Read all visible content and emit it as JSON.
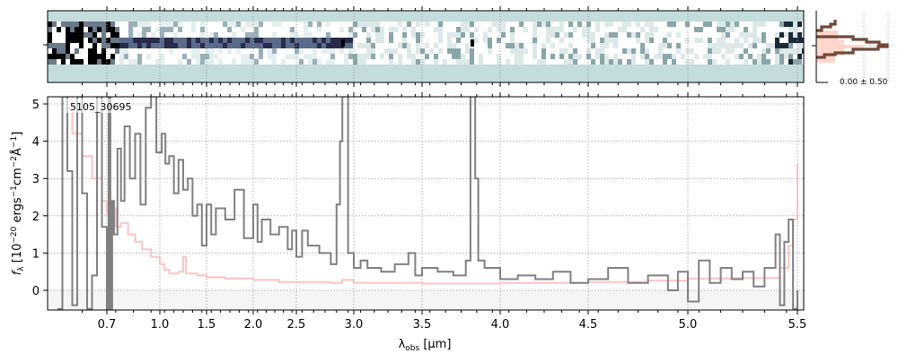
{
  "chart_data": {
    "type": "line",
    "object_id": "5105_30695",
    "xlabel": "λobs [μm]",
    "xlabel_main": "λ",
    "xlabel_sub": "obs",
    "xlabel_unit": " [μm]",
    "ylabel": "fλ [10^-20 ergs^-1 cm^-2 Å^-1]",
    "xlim": [
      0.6,
      5.5
    ],
    "ylim": [
      -0.53,
      5.2
    ],
    "x_ticks": [
      0.7,
      1.0,
      1.5,
      2.0,
      2.5,
      3.0,
      3.5,
      4.0,
      4.5,
      5.0,
      5.5
    ],
    "x_tick_labels": [
      "0.7",
      "1.0",
      "1.5",
      "2.0",
      "2.5",
      "3.0",
      "3.5",
      "4.0",
      "4.5",
      "5.0",
      "5.5"
    ],
    "y_ticks": [
      0,
      1,
      2,
      3,
      4,
      5
    ],
    "y_tick_labels": [
      "0",
      "1",
      "2",
      "3",
      "4",
      "5"
    ],
    "grid": true,
    "colors": {
      "data": "#808080",
      "model": "#ffb8b8",
      "image_bg": "#c4dcdc",
      "hist_edge": "#7a3a2a",
      "hist_fill": "#ffd6cc"
    },
    "series": [
      {
        "name": "data",
        "x": [
          0.6,
          0.61,
          0.62,
          0.63,
          0.64,
          0.65,
          0.66,
          0.67,
          0.68,
          0.69,
          0.7,
          0.71,
          0.72,
          0.73,
          0.74,
          0.76,
          0.78,
          0.8,
          0.83,
          0.86,
          0.89,
          0.92,
          0.95,
          0.98,
          1.02,
          1.06,
          1.1,
          1.15,
          1.2,
          1.25,
          1.3,
          1.35,
          1.4,
          1.45,
          1.5,
          1.55,
          1.6,
          1.7,
          1.8,
          1.9,
          2.0,
          2.05,
          2.1,
          2.2,
          2.3,
          2.4,
          2.45,
          2.5,
          2.55,
          2.6,
          2.7,
          2.8,
          2.85,
          2.88,
          2.9,
          2.93,
          2.95,
          3.0,
          3.05,
          3.1,
          3.2,
          3.3,
          3.4,
          3.45,
          3.5,
          3.6,
          3.7,
          3.78,
          3.81,
          3.84,
          3.86,
          3.9,
          4.0,
          4.1,
          4.2,
          4.3,
          4.4,
          4.5,
          4.6,
          4.7,
          4.8,
          4.9,
          4.95,
          5.0,
          5.05,
          5.1,
          5.15,
          5.2,
          5.25,
          5.3,
          5.35,
          5.4,
          5.42,
          5.44,
          5.46,
          5.48,
          5.5
        ],
        "y": [
          -0.5,
          5.2,
          3.2,
          -0.4,
          5.2,
          2.6,
          -0.5,
          0.4,
          5.2,
          1.7,
          -0.5,
          5.2,
          -0.5,
          2.4,
          1.5,
          3.8,
          2.4,
          4.4,
          3.0,
          4.2,
          2.3,
          4.9,
          5.2,
          3.7,
          4.2,
          3.4,
          3.6,
          2.6,
          3.5,
          2.7,
          3.0,
          2.0,
          2.3,
          1.2,
          2.3,
          1.5,
          2.2,
          1.9,
          2.7,
          1.4,
          2.3,
          1.3,
          1.9,
          1.5,
          1.7,
          1.1,
          1.6,
          0.9,
          1.6,
          1.2,
          1.0,
          0.7,
          2.3,
          4.0,
          5.2,
          5.2,
          1.0,
          0.6,
          0.8,
          0.6,
          0.5,
          0.7,
          1.0,
          0.4,
          0.6,
          0.5,
          0.4,
          0.8,
          5.2,
          3.0,
          0.8,
          0.6,
          0.3,
          0.4,
          0.3,
          0.5,
          0.2,
          0.3,
          0.6,
          0.2,
          0.4,
          0.0,
          0.5,
          -0.3,
          0.8,
          0.2,
          0.6,
          0.3,
          0.5,
          0.1,
          0.6,
          1.5,
          -0.4,
          1.3,
          1.9,
          -0.5,
          0.0
        ]
      },
      {
        "name": "model",
        "x": [
          0.6,
          0.63,
          0.65,
          0.67,
          0.69,
          0.7,
          0.72,
          0.75,
          0.78,
          0.82,
          0.86,
          0.9,
          0.95,
          1.0,
          1.05,
          1.1,
          1.2,
          1.25,
          1.28,
          1.4,
          1.5,
          1.7,
          2.0,
          2.3,
          2.5,
          2.8,
          2.9,
          3.0,
          3.5,
          4.0,
          4.5,
          4.8,
          5.0,
          5.2,
          5.35,
          5.42,
          5.46,
          5.48,
          5.5
        ],
        "y": [
          5.2,
          4.2,
          3.6,
          3.0,
          2.4,
          2.0,
          2.2,
          1.7,
          1.8,
          1.5,
          1.3,
          1.1,
          0.9,
          0.7,
          0.55,
          0.45,
          0.5,
          0.9,
          0.45,
          0.4,
          0.35,
          0.32,
          0.28,
          0.22,
          0.22,
          0.2,
          0.28,
          0.2,
          0.18,
          0.2,
          0.22,
          0.26,
          0.32,
          0.33,
          0.33,
          0.6,
          1.2,
          1.9,
          3.4
        ]
      }
    ],
    "histogram_inset": {
      "label": "0.00 ± 0.50"
    }
  }
}
